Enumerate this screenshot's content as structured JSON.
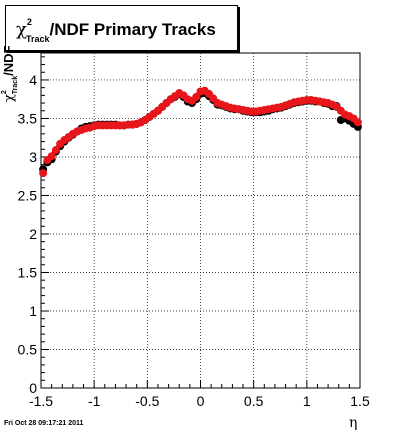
{
  "title": {
    "chi": "χ",
    "sup": "2",
    "sub": "Track",
    "rest": "/NDF  Primary Tracks"
  },
  "ylabel": {
    "chi": "χ",
    "sup": "2",
    "sub": "Track",
    "rest": "/NDF"
  },
  "xlabel": "η",
  "timestamp": "Fri Oct 28 09:17:21 2011",
  "chart_data": {
    "type": "scatter",
    "xlim": [
      -1.5,
      1.5
    ],
    "ylim": [
      0,
      4.35
    ],
    "x_ticks": [
      -1.5,
      -1,
      -0.5,
      0,
      0.5,
      1,
      1.5
    ],
    "x_tick_labels": [
      "-1.5",
      "-1",
      "-0.5",
      "0",
      "0.5",
      "1",
      "1.5"
    ],
    "y_ticks": [
      0,
      0.5,
      1,
      1.5,
      2,
      2.5,
      3,
      3.5,
      4
    ],
    "y_tick_labels": [
      "0",
      "0.5",
      "1",
      "1.5",
      "2",
      "2.5",
      "3",
      "3.5",
      "4"
    ],
    "grid": true,
    "colors": {
      "series_black": "#000000",
      "series_red": "#e8161b",
      "axis": "#000000",
      "grid": "#000000"
    },
    "series": [
      {
        "x": [
          -1.48,
          -1.44,
          -1.4,
          -1.36,
          -1.32,
          -1.28,
          -1.24,
          -1.2,
          -1.16,
          -1.12,
          -1.08,
          -1.04,
          -1.0,
          -0.96,
          -0.92,
          -0.88,
          -0.84,
          -0.8,
          -0.76,
          -0.72,
          -0.68,
          -0.64,
          -0.6,
          -0.56,
          -0.52,
          -0.48,
          -0.44,
          -0.4,
          -0.36,
          -0.32,
          -0.28,
          -0.24,
          -0.2,
          -0.16,
          -0.12,
          -0.08,
          -0.04,
          0.0,
          0.04,
          0.08,
          0.12,
          0.16,
          0.2,
          0.24,
          0.28,
          0.32,
          0.36,
          0.4,
          0.44,
          0.48,
          0.52,
          0.56,
          0.6,
          0.64,
          0.68,
          0.72,
          0.76,
          0.8,
          0.84,
          0.88,
          0.92,
          0.96,
          1.0,
          1.04,
          1.08,
          1.12,
          1.16,
          1.2,
          1.24,
          1.28,
          1.32,
          1.36,
          1.4,
          1.44,
          1.48
        ],
        "y": [
          2.84,
          2.93,
          2.97,
          3.07,
          3.14,
          3.2,
          3.25,
          3.29,
          3.33,
          3.37,
          3.39,
          3.4,
          3.41,
          3.42,
          3.42,
          3.42,
          3.42,
          3.42,
          3.41,
          3.41,
          3.42,
          3.42,
          3.43,
          3.45,
          3.48,
          3.52,
          3.56,
          3.6,
          3.65,
          3.7,
          3.75,
          3.78,
          3.82,
          3.78,
          3.72,
          3.7,
          3.75,
          3.82,
          3.83,
          3.79,
          3.74,
          3.68,
          3.67,
          3.65,
          3.63,
          3.62,
          3.62,
          3.6,
          3.59,
          3.58,
          3.58,
          3.58,
          3.59,
          3.6,
          3.62,
          3.63,
          3.64,
          3.66,
          3.68,
          3.7,
          3.71,
          3.72,
          3.73,
          3.73,
          3.72,
          3.72,
          3.7,
          3.69,
          3.66,
          3.66,
          3.48,
          3.5,
          3.47,
          3.43,
          3.39
        ]
      },
      {
        "x": [
          -1.48,
          -1.44,
          -1.4,
          -1.36,
          -1.32,
          -1.28,
          -1.24,
          -1.2,
          -1.16,
          -1.12,
          -1.08,
          -1.04,
          -1.0,
          -0.96,
          -0.92,
          -0.88,
          -0.84,
          -0.8,
          -0.76,
          -0.72,
          -0.68,
          -0.64,
          -0.6,
          -0.56,
          -0.52,
          -0.48,
          -0.44,
          -0.4,
          -0.36,
          -0.32,
          -0.28,
          -0.24,
          -0.2,
          -0.16,
          -0.12,
          -0.08,
          -0.04,
          0.0,
          0.04,
          0.08,
          0.12,
          0.16,
          0.2,
          0.24,
          0.28,
          0.32,
          0.36,
          0.4,
          0.44,
          0.48,
          0.52,
          0.56,
          0.6,
          0.64,
          0.68,
          0.72,
          0.76,
          0.8,
          0.84,
          0.88,
          0.92,
          0.96,
          1.0,
          1.04,
          1.08,
          1.12,
          1.16,
          1.2,
          1.24,
          1.28,
          1.32,
          1.36,
          1.4,
          1.44,
          1.48
        ],
        "y": [
          2.79,
          2.96,
          3.01,
          3.09,
          3.17,
          3.22,
          3.26,
          3.3,
          3.33,
          3.35,
          3.37,
          3.38,
          3.4,
          3.41,
          3.41,
          3.41,
          3.41,
          3.41,
          3.41,
          3.41,
          3.42,
          3.42,
          3.43,
          3.45,
          3.48,
          3.52,
          3.56,
          3.6,
          3.65,
          3.7,
          3.75,
          3.79,
          3.83,
          3.8,
          3.75,
          3.73,
          3.78,
          3.85,
          3.86,
          3.82,
          3.76,
          3.7,
          3.68,
          3.66,
          3.64,
          3.63,
          3.62,
          3.61,
          3.6,
          3.59,
          3.59,
          3.6,
          3.61,
          3.62,
          3.63,
          3.64,
          3.65,
          3.67,
          3.69,
          3.71,
          3.72,
          3.73,
          3.74,
          3.74,
          3.73,
          3.72,
          3.71,
          3.7,
          3.68,
          3.65,
          3.6,
          3.55,
          3.53,
          3.5,
          3.45
        ]
      }
    ]
  }
}
